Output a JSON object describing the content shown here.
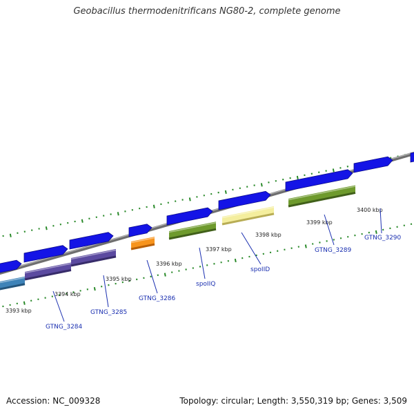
{
  "title": "Geobacillus thermodenitrificans NG80-2, complete genome",
  "footer": {
    "accession": "Accession: NC_009328",
    "summary": "Topology: circular; Length: 3,550,319 bp; Genes: 3,509"
  },
  "colors": {
    "backbone": "#8c8c8c",
    "cds": "#1414e6",
    "tick": "#2a8a2a",
    "label_line": "#1a2fb0"
  },
  "ticks": [
    "3393 kbp",
    "3394 kbp",
    "3395 kbp",
    "3396 kbp",
    "3397 kbp",
    "3398 kbp",
    "3399 kbp",
    "3400 kbp"
  ],
  "genes": [
    "GTNG_3284",
    "GTNG_3285",
    "GTNG_3286",
    "spoIIQ",
    "spoIID",
    "GTNG_3289",
    "GTNG_3290"
  ]
}
